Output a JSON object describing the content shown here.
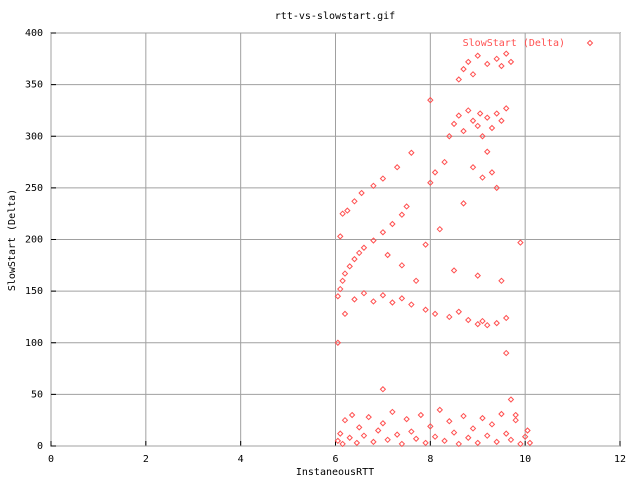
{
  "chart_data": {
    "type": "scatter",
    "title": "rtt-vs-slowstart.gif",
    "x_label": "InstaneousRTT",
    "y_label": "SlowStart (Delta)",
    "xlim": [
      0,
      12
    ],
    "xticks": [
      0,
      2,
      4,
      6,
      8,
      10,
      12
    ],
    "ylim": [
      0,
      400
    ],
    "yticks": [
      0,
      50,
      100,
      150,
      200,
      250,
      300,
      350,
      400
    ],
    "grid": true,
    "legend": "top-right",
    "x": [
      6.05,
      6.1,
      6.15,
      6.2,
      6.3,
      6.35,
      6.45,
      6.5,
      6.6,
      6.7,
      6.8,
      6.9,
      7.0,
      7.1,
      7.2,
      7.3,
      7.4,
      7.5,
      7.6,
      7.7,
      7.8,
      7.9,
      8.0,
      8.1,
      8.2,
      8.3,
      8.4,
      8.5,
      8.6,
      8.7,
      8.8,
      8.9,
      9.0,
      9.1,
      9.2,
      9.3,
      9.4,
      9.5,
      9.6,
      9.7,
      9.8,
      9.9,
      10.0,
      10.05,
      10.1,
      6.05,
      6.1,
      6.15,
      6.2,
      6.3,
      6.4,
      6.5,
      6.6,
      6.8,
      7.0,
      7.2,
      7.4,
      7.5,
      6.1,
      6.15,
      6.25,
      6.4,
      6.55,
      6.8,
      7.0,
      7.3,
      7.6,
      6.2,
      6.4,
      6.6,
      6.8,
      7.0,
      7.2,
      7.4,
      7.6,
      7.9,
      8.1,
      8.4,
      8.6,
      8.8,
      9.0,
      9.1,
      9.2,
      9.4,
      9.6,
      8.4,
      8.5,
      8.6,
      8.7,
      8.8,
      8.9,
      9.0,
      9.05,
      9.1,
      9.2,
      9.3,
      9.4,
      9.5,
      9.6,
      8.6,
      8.7,
      8.8,
      8.9,
      9.0,
      9.2,
      9.4,
      9.5,
      9.6,
      9.7,
      7.1,
      7.4,
      7.7,
      7.9,
      8.0,
      8.1,
      8.2,
      8.3,
      8.5,
      8.7,
      8.9,
      9.0,
      9.1,
      9.2,
      9.3,
      9.4,
      9.5,
      9.6,
      9.8,
      9.9,
      6.05,
      7.0,
      8.0,
      9.7
    ],
    "series": [
      {
        "name": "SlowStart (Delta)",
        "color": "#ff5050",
        "values": [
          5,
          12,
          2,
          25,
          8,
          30,
          3,
          18,
          10,
          28,
          4,
          15,
          22,
          6,
          33,
          11,
          2,
          26,
          14,
          7,
          30,
          3,
          19,
          9,
          35,
          5,
          24,
          13,
          2,
          29,
          8,
          17,
          3,
          27,
          10,
          21,
          4,
          31,
          12,
          6,
          25,
          2,
          9,
          15,
          3,
          145,
          152,
          160,
          167,
          174,
          181,
          187,
          192,
          199,
          207,
          215,
          224,
          232,
          203,
          225,
          228,
          237,
          245,
          252,
          259,
          270,
          284,
          128,
          142,
          148,
          140,
          146,
          139,
          143,
          137,
          132,
          128,
          125,
          130,
          122,
          118,
          121,
          117,
          119,
          124,
          300,
          312,
          320,
          305,
          325,
          315,
          310,
          322,
          300,
          318,
          308,
          322,
          315,
          327,
          355,
          365,
          372,
          360,
          378,
          370,
          375,
          368,
          380,
          372,
          185,
          175,
          160,
          195,
          255,
          265,
          210,
          275,
          170,
          235,
          270,
          165,
          260,
          285,
          265,
          250,
          160,
          90,
          30,
          197,
          100,
          55,
          335,
          45
        ]
      }
    ]
  }
}
